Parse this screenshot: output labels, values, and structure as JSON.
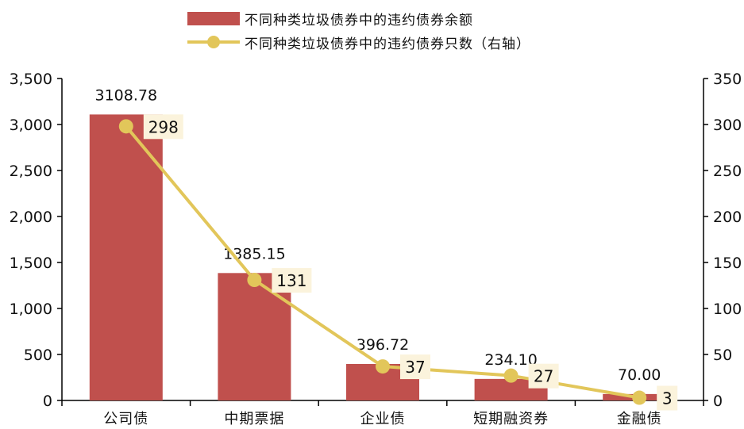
{
  "chart_data": {
    "type": "bar+line",
    "categories": [
      "公司债",
      "中期票据",
      "企业债",
      "短期融资券",
      "金融债"
    ],
    "series": [
      {
        "name": "不同种类垃圾债券中的违约债券余额",
        "type": "bar",
        "axis": "left",
        "values": [
          3108.78,
          1385.15,
          396.72,
          234.1,
          70.0
        ],
        "labels": [
          "3108.78",
          "1385.15",
          "396.72",
          "234.10",
          "70.00"
        ],
        "color": "#c0504d"
      },
      {
        "name": "不同种类垃圾债券中的违约债券只数（右轴）",
        "type": "line",
        "axis": "right",
        "values": [
          298,
          131,
          37,
          27,
          3
        ],
        "labels": [
          "298",
          "131",
          "37",
          "27",
          "3"
        ],
        "color": "#e2c65a"
      }
    ],
    "y_left": {
      "lim": [
        0,
        3500
      ],
      "ticks": [
        "0",
        "500",
        "1,000",
        "1,500",
        "2,000",
        "2,500",
        "3,000",
        "3,500"
      ]
    },
    "y_right": {
      "lim": [
        0,
        350
      ],
      "ticks": [
        "0",
        "50",
        "100",
        "150",
        "200",
        "250",
        "300",
        "350"
      ]
    },
    "grid": false,
    "legend_position": "top-center"
  }
}
